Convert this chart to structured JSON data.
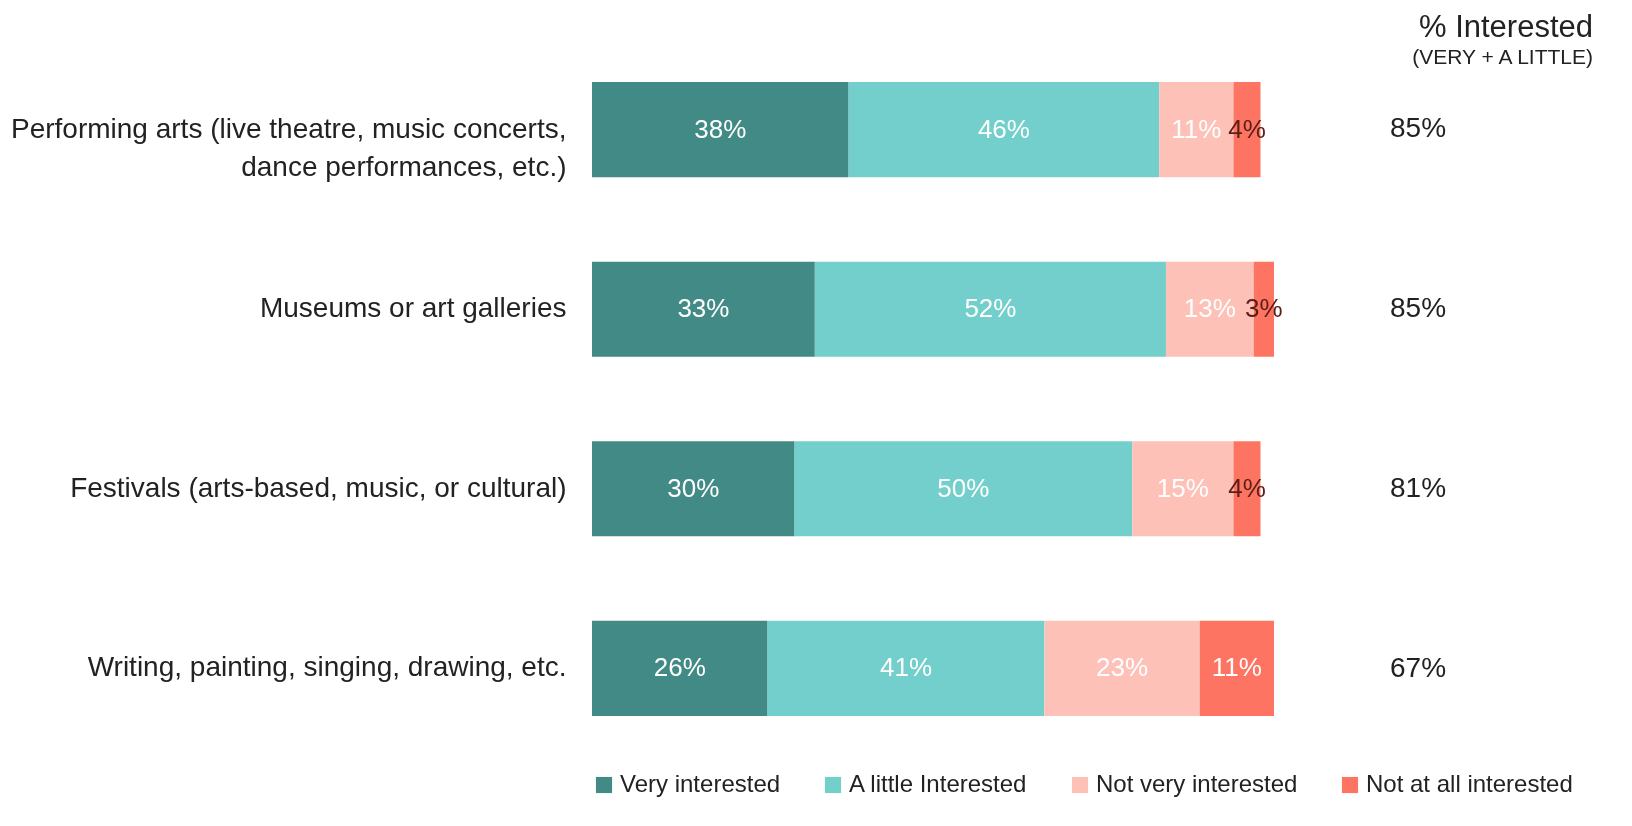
{
  "chart_data": {
    "type": "bar",
    "orientation": "horizontal",
    "stacked": true,
    "tick_labels": "y",
    "legend": "bottom",
    "categories": [
      "Performing arts (live theatre, music concerts, dance performances, etc.)",
      "Museums or art galleries",
      "Festivals (arts-based, music, or cultural)",
      "Writing, painting, singing, drawing, etc."
    ],
    "series": [
      {
        "name": "Very interested",
        "color": "#428a85",
        "values": [
          38,
          33,
          30,
          26
        ],
        "value_labels": [
          "38%",
          "33%",
          "30%",
          "26%"
        ]
      },
      {
        "name": "A little Interested",
        "color": "#72cfcb",
        "values": [
          46,
          52,
          50,
          41
        ],
        "value_labels": [
          "46%",
          "52%",
          "50%",
          "41%"
        ]
      },
      {
        "name": "Not very interested",
        "color": "#fdc1b8",
        "values": [
          11,
          13,
          15,
          23
        ],
        "value_labels": [
          "11%",
          "13%",
          "15%",
          "23%"
        ]
      },
      {
        "name": "Not at all interested",
        "color": "#fe7462",
        "values": [
          4,
          3,
          4,
          11
        ],
        "value_labels": [
          "4%",
          "3%",
          "4%",
          "11%"
        ]
      }
    ],
    "annotations": [
      "% Interested",
      "(VERY + A LITTLE)",
      "85%",
      "85%",
      "81%",
      "67%"
    ]
  }
}
